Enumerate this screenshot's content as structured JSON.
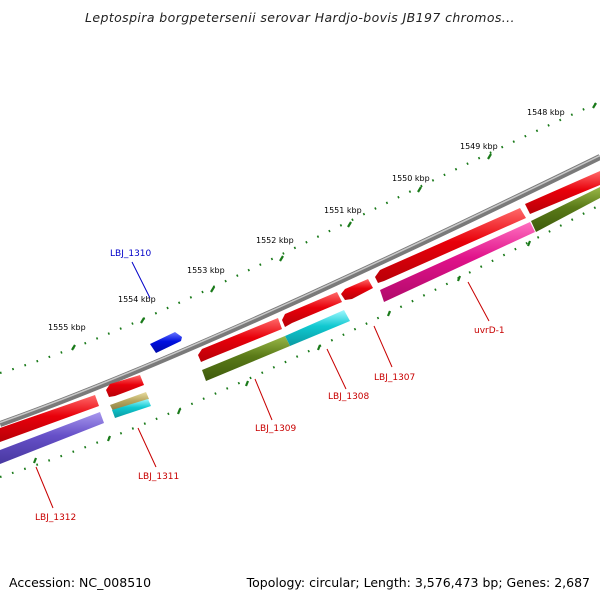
{
  "title": "Leptospira borgpetersenii serovar Hardjo-bovis JB197 chromos...",
  "footer": {
    "accession": "Accession: NC_008510",
    "topology": "Topology: circular; Length: 3,576,473 bp; Genes: 2,687"
  },
  "scale_labels": [
    "1548 kbp",
    "1549 kbp",
    "1550 kbp",
    "1551 kbp",
    "1552 kbp",
    "1553 kbp",
    "1554 kbp",
    "1555 kbp"
  ],
  "gene_labels": [
    "LBJ_1310",
    "uvrD-1",
    "LBJ_1307",
    "LBJ_1308",
    "LBJ_1309",
    "LBJ_1311",
    "LBJ_1312"
  ],
  "colors": {
    "backbone": "#7a7a7a",
    "tick": "#1a7a1a",
    "gene_red": "#e8000a",
    "gene_blue": "#0010e0",
    "gene_magenta": "#e0128a",
    "gene_cyan": "#10c8d0",
    "gene_olive": "#5a7a18",
    "gene_tan": "#b8a860",
    "gene_purple": "#6650c8",
    "label_red": "#c80000",
    "label_blue": "#0000c8"
  }
}
